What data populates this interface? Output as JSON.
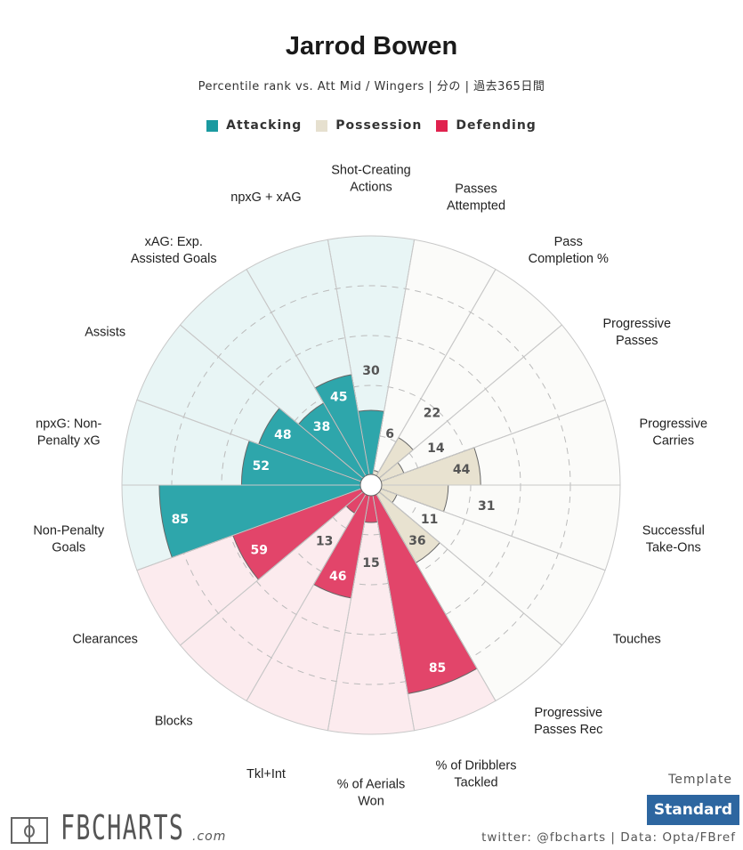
{
  "title": "Jarrod Bowen",
  "subtitle": "Percentile rank vs. Att Mid / Wingers | 分の | 過去365日間",
  "legend": [
    {
      "label": "Attacking",
      "color": "#1a9aa0"
    },
    {
      "label": "Possession",
      "color": "#e6e0cf"
    },
    {
      "label": "Defending",
      "color": "#e0224e"
    }
  ],
  "template_label": "Template",
  "template_value": "Standard",
  "credit": "twitter: @fbcharts | Data: Opta/FBref",
  "logo": {
    "text": "FBCHARTS",
    "suffix": ".com"
  },
  "chart_data": {
    "type": "pizza",
    "rlim": [
      0,
      100
    ],
    "gridlines": [
      20,
      40,
      60,
      80
    ],
    "colors": {
      "Attacking": {
        "bar": "#2ea6ab",
        "bg": "#e8f5f5"
      },
      "Possession": {
        "bar": "#e8e2d0",
        "bg": "#fbfbf9"
      },
      "Defending": {
        "bar": "#e2456a",
        "bg": "#fcebee"
      }
    },
    "categories": [
      {
        "label": "Shot-Creating\nActions",
        "value": 30,
        "group": "Attacking"
      },
      {
        "label": "Passes\nAttempted",
        "value": 6,
        "group": "Possession"
      },
      {
        "label": "Pass\nCompletion %",
        "value": 22,
        "group": "Possession"
      },
      {
        "label": "Progressive\nPasses",
        "value": 14,
        "group": "Possession"
      },
      {
        "label": "Progressive\nCarries",
        "value": 44,
        "group": "Possession"
      },
      {
        "label": "Successful\nTake-Ons",
        "value": 31,
        "group": "Possession"
      },
      {
        "label": "Touches",
        "value": 11,
        "group": "Possession"
      },
      {
        "label": "Progressive\nPasses Rec",
        "value": 36,
        "group": "Possession"
      },
      {
        "label": "% of Dribblers\nTackled",
        "value": 85,
        "group": "Defending"
      },
      {
        "label": "% of Aerials\nWon",
        "value": 15,
        "group": "Defending"
      },
      {
        "label": "Tkl+Int",
        "value": 46,
        "group": "Defending"
      },
      {
        "label": "Blocks",
        "value": 13,
        "group": "Defending"
      },
      {
        "label": "Clearances",
        "value": 59,
        "group": "Defending"
      },
      {
        "label": "Non-Penalty\nGoals",
        "value": 85,
        "group": "Attacking"
      },
      {
        "label": "npxG: Non-\nPenalty xG",
        "value": 52,
        "group": "Attacking"
      },
      {
        "label": "Assists",
        "value": 48,
        "group": "Attacking"
      },
      {
        "label": "xAG: Exp.\nAssisted Goals",
        "value": 38,
        "group": "Attacking"
      },
      {
        "label": "npxG + xAG",
        "value": 45,
        "group": "Attacking"
      }
    ]
  }
}
